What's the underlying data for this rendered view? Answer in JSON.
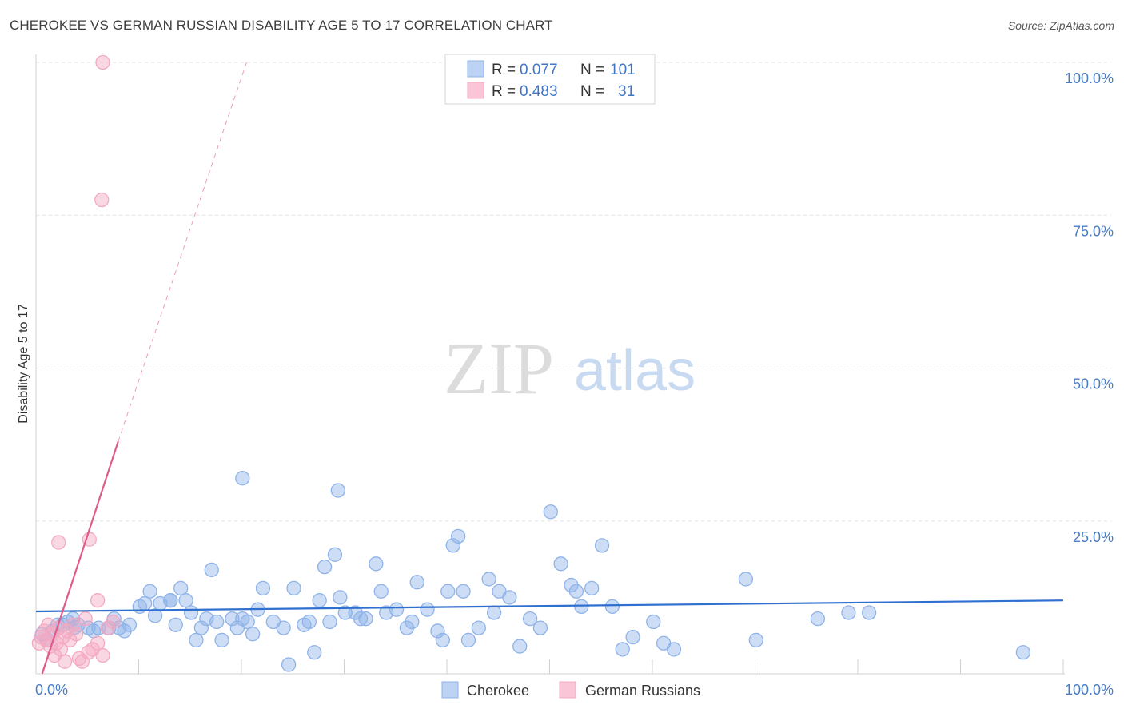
{
  "title": "CHEROKEE VS GERMAN RUSSIAN DISABILITY AGE 5 TO 17 CORRELATION CHART",
  "source": "Source: ZipAtlas.com",
  "watermark": {
    "zip": "ZIP",
    "atlas": "atlas"
  },
  "chart_data": {
    "type": "scatter",
    "xlabel": "",
    "ylabel": "Disability Age 5 to 17",
    "xlim": [
      0,
      100
    ],
    "ylim": [
      0,
      100
    ],
    "x_tick_labels": [
      "0.0%",
      "100.0%"
    ],
    "y_ticks": [
      25,
      50,
      75,
      100
    ],
    "y_tick_labels": [
      "25.0%",
      "50.0%",
      "75.0%",
      "100.0%"
    ],
    "grid": true,
    "legend": {
      "placement": "top-center",
      "rows": [
        {
          "r_label": "R =",
          "r_value": "0.077",
          "n_label": "N =",
          "n_value": "101"
        },
        {
          "r_label": "R =",
          "r_value": "0.483",
          "n_label": "N =",
          "n_value": "31"
        }
      ]
    },
    "series": [
      {
        "name": "Cherokee",
        "color": "#8fb3e8",
        "line_color": "#2f6fd0",
        "trend": {
          "x": [
            0,
            100
          ],
          "y": [
            10.2,
            12.0
          ]
        },
        "points": [
          [
            0.6,
            6.5
          ],
          [
            1.1,
            5.5
          ],
          [
            1.6,
            7.0
          ],
          [
            2.1,
            8.0
          ],
          [
            2.6,
            8.0
          ],
          [
            3.1,
            8.5
          ],
          [
            3.6,
            9.0
          ],
          [
            4.1,
            8.0
          ],
          [
            5.1,
            7.5
          ],
          [
            5.6,
            7.0
          ],
          [
            6.1,
            7.5
          ],
          [
            7.1,
            7.5
          ],
          [
            7.6,
            9.0
          ],
          [
            8.1,
            7.5
          ],
          [
            8.6,
            7.0
          ],
          [
            9.1,
            8.0
          ],
          [
            10.1,
            11.0
          ],
          [
            10.6,
            11.5
          ],
          [
            11.1,
            13.5
          ],
          [
            11.6,
            9.5
          ],
          [
            12.1,
            11.5
          ],
          [
            13.1,
            12.0
          ],
          [
            13.6,
            8.0
          ],
          [
            14.1,
            14.0
          ],
          [
            14.6,
            12.0
          ],
          [
            15.1,
            10.0
          ],
          [
            15.6,
            5.5
          ],
          [
            16.1,
            7.5
          ],
          [
            16.6,
            9.0
          ],
          [
            17.1,
            17.0
          ],
          [
            17.6,
            8.5
          ],
          [
            18.1,
            5.5
          ],
          [
            19.1,
            9.0
          ],
          [
            19.6,
            7.5
          ],
          [
            20.1,
            9.0
          ],
          [
            20.6,
            8.5
          ],
          [
            21.1,
            6.5
          ],
          [
            21.6,
            10.5
          ],
          [
            22.1,
            14.0
          ],
          [
            23.1,
            8.5
          ],
          [
            24.1,
            7.5
          ],
          [
            24.6,
            1.5
          ],
          [
            25.1,
            14.0
          ],
          [
            26.1,
            8.0
          ],
          [
            27.1,
            3.5
          ],
          [
            27.6,
            12.0
          ],
          [
            28.1,
            17.5
          ],
          [
            28.6,
            8.5
          ],
          [
            29.1,
            19.5
          ],
          [
            29.6,
            12.5
          ],
          [
            30.1,
            10.0
          ],
          [
            31.1,
            10.0
          ],
          [
            31.6,
            9.0
          ],
          [
            32.1,
            9.0
          ],
          [
            33.1,
            18.0
          ],
          [
            33.6,
            13.5
          ],
          [
            34.1,
            10.0
          ],
          [
            35.1,
            10.5
          ],
          [
            36.1,
            7.5
          ],
          [
            36.6,
            8.5
          ],
          [
            37.1,
            15.0
          ],
          [
            38.1,
            10.5
          ],
          [
            39.1,
            7.0
          ],
          [
            39.6,
            5.5
          ],
          [
            40.1,
            13.5
          ],
          [
            40.6,
            21.0
          ],
          [
            41.1,
            22.5
          ],
          [
            41.6,
            13.5
          ],
          [
            42.1,
            5.5
          ],
          [
            43.1,
            7.5
          ],
          [
            44.1,
            15.5
          ],
          [
            44.6,
            10.0
          ],
          [
            45.1,
            13.5
          ],
          [
            46.1,
            12.5
          ],
          [
            47.1,
            4.5
          ],
          [
            48.1,
            9.0
          ],
          [
            49.1,
            7.5
          ],
          [
            50.1,
            26.5
          ],
          [
            51.1,
            18.0
          ],
          [
            52.1,
            14.5
          ],
          [
            52.6,
            13.5
          ],
          [
            53.1,
            11.0
          ],
          [
            54.1,
            14.0
          ],
          [
            55.1,
            21.0
          ],
          [
            56.1,
            11.0
          ],
          [
            57.1,
            4.0
          ],
          [
            58.1,
            6.0
          ],
          [
            60.1,
            8.5
          ],
          [
            61.1,
            5.0
          ],
          [
            62.1,
            4.0
          ],
          [
            69.1,
            15.5
          ],
          [
            70.1,
            5.5
          ],
          [
            76.1,
            9.0
          ],
          [
            79.1,
            10.0
          ],
          [
            81.1,
            10.0
          ],
          [
            96.1,
            3.5
          ],
          [
            20.1,
            32.0
          ],
          [
            29.4,
            30.0
          ],
          [
            13.1,
            12.0
          ],
          [
            26.6,
            8.5
          ],
          [
            3.8,
            7.6
          ]
        ]
      },
      {
        "name": "German Russians",
        "color": "#f4a9c2",
        "line_color": "#e05a8c",
        "trend": {
          "x": [
            0.6,
            8.0
          ],
          "y": [
            0.0,
            38.0
          ]
        },
        "trend_extension": {
          "x": [
            8.0,
            20.5
          ],
          "y": [
            38.0,
            100.0
          ]
        },
        "points": [
          [
            0.3,
            5.0
          ],
          [
            0.5,
            6.0
          ],
          [
            0.8,
            7.0
          ],
          [
            1.0,
            5.5
          ],
          [
            1.2,
            8.0
          ],
          [
            1.4,
            4.5
          ],
          [
            1.6,
            6.5
          ],
          [
            1.8,
            3.0
          ],
          [
            2.0,
            5.0
          ],
          [
            2.2,
            7.5
          ],
          [
            2.4,
            4.0
          ],
          [
            2.6,
            6.0
          ],
          [
            2.8,
            2.0
          ],
          [
            3.0,
            7.0
          ],
          [
            3.3,
            5.5
          ],
          [
            3.6,
            8.0
          ],
          [
            3.9,
            6.5
          ],
          [
            4.2,
            2.5
          ],
          [
            4.5,
            2.0
          ],
          [
            4.8,
            9.0
          ],
          [
            5.1,
            3.5
          ],
          [
            5.5,
            4.0
          ],
          [
            6.0,
            5.0
          ],
          [
            6.5,
            3.0
          ],
          [
            7.0,
            7.5
          ],
          [
            7.5,
            8.5
          ],
          [
            2.2,
            21.5
          ],
          [
            5.2,
            22.0
          ],
          [
            6.0,
            12.0
          ],
          [
            6.4,
            77.5
          ],
          [
            6.5,
            100.0
          ]
        ]
      }
    ]
  }
}
